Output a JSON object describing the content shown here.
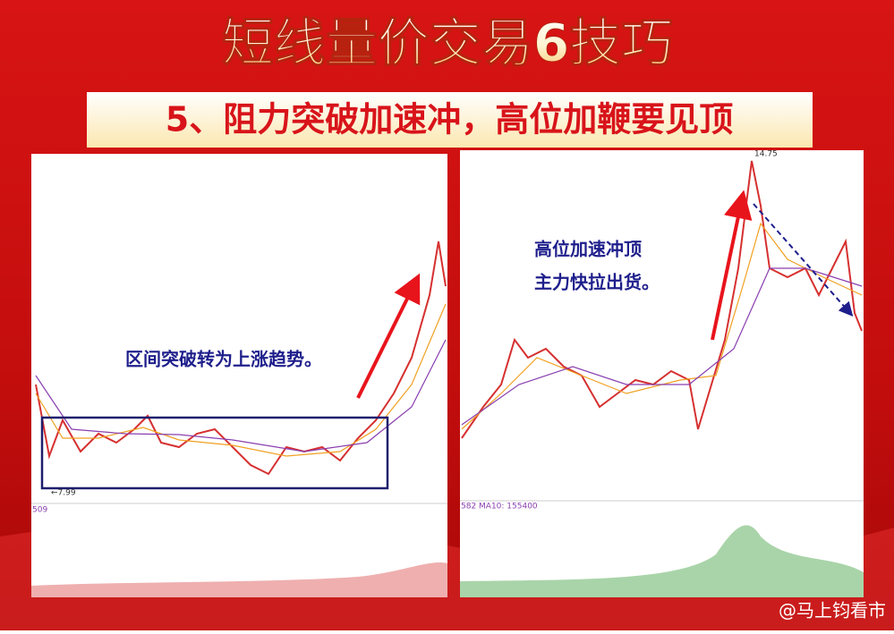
{
  "header": {
    "title": "短线量价交易6技巧",
    "subtitle": "5、阻力突破加速冲，高位加鞭要见顶"
  },
  "left_chart": {
    "annotation": "区间突破转为上涨趋势。",
    "low_label": "←7.99",
    "volume_label": "509"
  },
  "right_chart": {
    "annotation": [
      "高位加速冲顶",
      "主力快拉出货。"
    ],
    "high_label": "14.75",
    "volume_label": "582  MA10: 155400"
  },
  "watermark": "@马上钧看市"
}
